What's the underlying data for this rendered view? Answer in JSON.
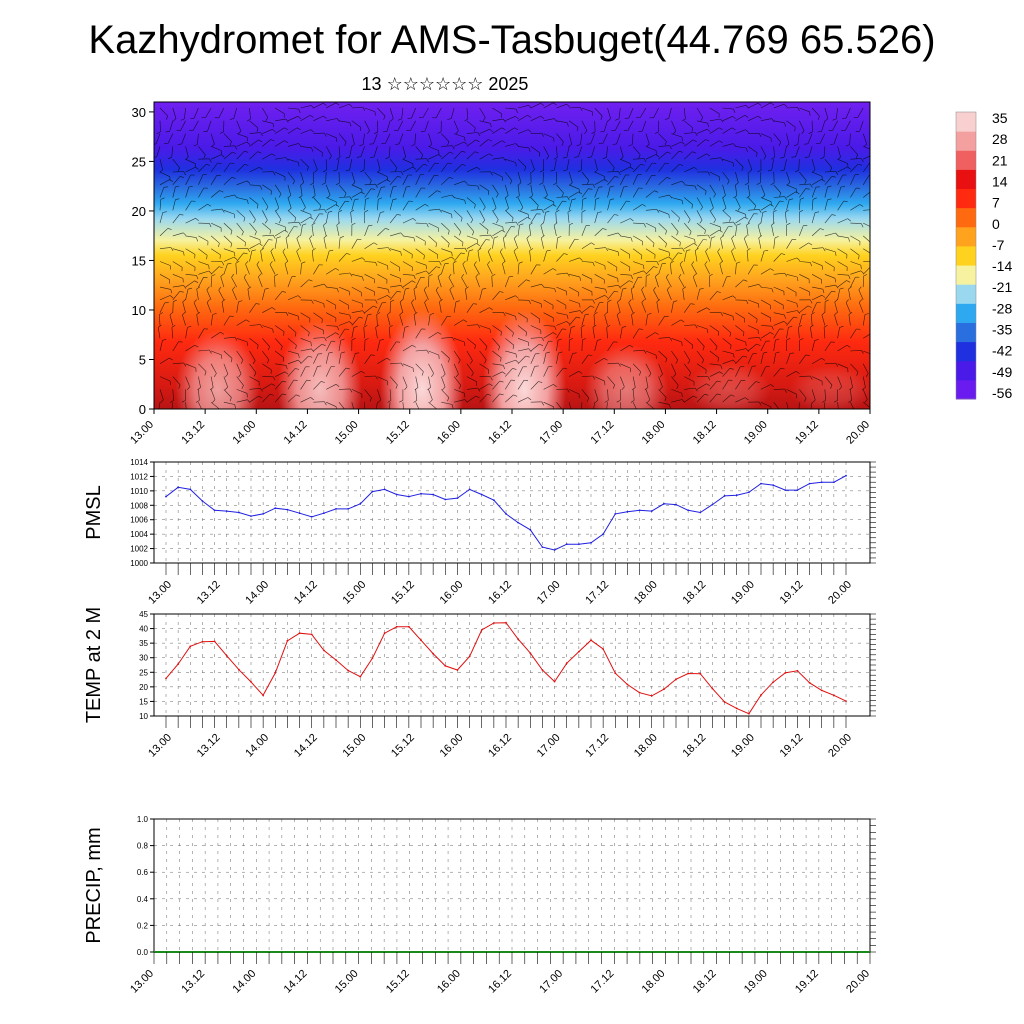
{
  "title": "Kazhydromet for AMS-Tasbuget(44.769 65.526)",
  "subtitle": "13 ☆☆☆☆☆☆ 2025",
  "chart_data": [
    {
      "type": "heatmap",
      "title": "",
      "ylabel": "",
      "ylim": [
        0,
        31
      ],
      "yticks": [
        "0",
        "5",
        "10",
        "15",
        "20",
        "25",
        "30"
      ],
      "xticks": [
        "13.00",
        "13.12",
        "14.00",
        "14.12",
        "15.00",
        "15.12",
        "16.00",
        "16.12",
        "17.00",
        "17.12",
        "18.00",
        "18.12",
        "19.00",
        "19.12",
        "20.00"
      ],
      "colorbar": {
        "labels": [
          "35",
          "28",
          "21",
          "14",
          "7",
          "0",
          "-7",
          "-14",
          "-21",
          "-28",
          "-35",
          "-42",
          "-49",
          "-56"
        ],
        "range": [
          -60,
          38
        ],
        "colors": [
          "#6a1cf0",
          "#4a1ae8",
          "#1f30e0",
          "#2a6fe0",
          "#2ea8f0",
          "#9ad8f0",
          "#f6f2a0",
          "#ffd21f",
          "#ffa21e",
          "#ff6a10",
          "#ff2a10",
          "#e81010",
          "#f06060",
          "#f5a0a0",
          "#f8d0d0"
        ]
      },
      "grid": false
    },
    {
      "type": "line",
      "title": "",
      "ylabel": "PMSL",
      "ylim": [
        1000,
        1014
      ],
      "yticks": [
        "1000",
        "1002",
        "1004",
        "1006",
        "1008",
        "1010",
        "1012",
        "1014"
      ],
      "xticks": [
        "13.00",
        "13.12",
        "14.00",
        "14.12",
        "15.00",
        "15.12",
        "16.00",
        "16.12",
        "17.00",
        "17.12",
        "18.00",
        "18.12",
        "19.00",
        "19.12",
        "20.00"
      ],
      "x": [
        0,
        3,
        6,
        9,
        12,
        15,
        18,
        21,
        24,
        27,
        30,
        33,
        36,
        39,
        42,
        45,
        48,
        51,
        54,
        57,
        60,
        63,
        66,
        69,
        72,
        75,
        78,
        81,
        84,
        87,
        90,
        93,
        96,
        99,
        102,
        105,
        108,
        111,
        114,
        117,
        120,
        123,
        126,
        129,
        132,
        135,
        138,
        141,
        144,
        147,
        150,
        153,
        156,
        159,
        162,
        165,
        168
      ],
      "series": [
        {
          "name": "",
          "color": "#2020e0",
          "values": [
            1009.2,
            1010.5,
            1010.2,
            1008.6,
            1007.3,
            1007.2,
            1007.0,
            1006.5,
            1006.8,
            1007.6,
            1007.4,
            1006.9,
            1006.4,
            1006.9,
            1007.5,
            1007.5,
            1008.2,
            1009.9,
            1010.2,
            1009.5,
            1009.2,
            1009.6,
            1009.5,
            1008.8,
            1009.0,
            1010.2,
            1009.5,
            1008.7,
            1006.8,
            1005.6,
            1004.6,
            1002.2,
            1001.8,
            1002.6,
            1002.6,
            1002.8,
            1004.0,
            1006.8,
            1007.1,
            1007.3,
            1007.2,
            1008.2,
            1008.1,
            1007.3,
            1007.0,
            1008.1,
            1009.3,
            1009.4,
            1009.8,
            1011.0,
            1010.8,
            1010.1,
            1010.1,
            1011.0,
            1011.2,
            1011.2,
            1012.1
          ]
        }
      ],
      "grid": true
    },
    {
      "type": "line",
      "title": "",
      "ylabel": "TEMP at 2 M",
      "ylim": [
        10,
        45
      ],
      "yticks": [
        "10",
        "15",
        "20",
        "25",
        "30",
        "35",
        "40",
        "45"
      ],
      "xticks": [
        "13.00",
        "13.12",
        "14.00",
        "14.12",
        "15.00",
        "15.12",
        "16.00",
        "16.12",
        "17.00",
        "17.12",
        "18.00",
        "18.12",
        "19.00",
        "19.12",
        "20.00"
      ],
      "x": [
        0,
        3,
        6,
        9,
        12,
        15,
        18,
        21,
        24,
        27,
        30,
        33,
        36,
        39,
        42,
        45,
        48,
        51,
        54,
        57,
        60,
        63,
        66,
        69,
        72,
        75,
        78,
        81,
        84,
        87,
        90,
        93,
        96,
        99,
        102,
        105,
        108,
        111,
        114,
        117,
        120,
        123,
        126,
        129,
        132,
        135,
        138,
        141,
        144,
        147,
        150,
        153,
        156,
        159,
        162,
        165,
        168
      ],
      "series": [
        {
          "name": "",
          "color": "#e01010",
          "values": [
            22.9,
            27.8,
            33.9,
            35.5,
            35.6,
            30.7,
            25.9,
            21.7,
            17.1,
            24.8,
            35.8,
            38.4,
            38.0,
            32.5,
            29.2,
            25.6,
            23.5,
            29.8,
            38.4,
            40.6,
            40.6,
            36.0,
            31.4,
            27.2,
            25.8,
            30.4,
            39.5,
            41.9,
            42.0,
            36.4,
            31.6,
            25.8,
            21.8,
            28.1,
            32.1,
            36.0,
            33.0,
            24.7,
            20.8,
            18.0,
            16.9,
            19.2,
            22.6,
            24.6,
            24.5,
            19.4,
            14.8,
            12.6,
            10.8,
            17.2,
            21.6,
            24.8,
            25.5,
            21.4,
            18.8,
            17.1,
            15.1
          ]
        }
      ],
      "grid": true
    },
    {
      "type": "bar",
      "title": "",
      "ylabel": "PRECIP, mm",
      "ylim": [
        0,
        1
      ],
      "yticks": [
        "0.0",
        "0.2",
        "0.4",
        "0.6",
        "0.8",
        "1.0"
      ],
      "xticks": [
        "13.00",
        "13.12",
        "14.00",
        "14.12",
        "15.00",
        "15.12",
        "16.00",
        "16.12",
        "17.00",
        "17.12",
        "18.00",
        "18.12",
        "19.00",
        "19.12",
        "20.00"
      ],
      "values": [],
      "grid": true
    }
  ]
}
